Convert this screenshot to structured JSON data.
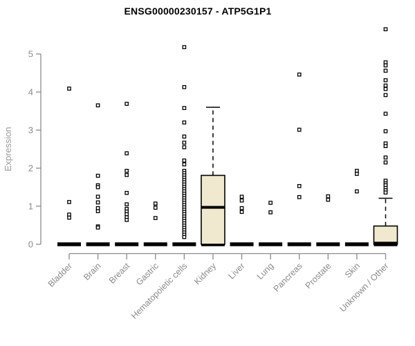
{
  "colors": {
    "box_fill": "#f0e9cf",
    "box_stroke": "#000000",
    "axis": "#8a8a8a",
    "tick_label": "#8a8a8a",
    "ylabel_color": "#9a9a9a",
    "marker_stroke": "#000000",
    "marker_fill": "#ffffff",
    "title_color": "#000000",
    "zero_bar": "#000000"
  },
  "chart_data": {
    "type": "boxplot",
    "title": "ENSG00000230157 - ATP5G1P1",
    "xlabel": "",
    "ylabel": "Expression",
    "ylim": [
      0,
      5
    ],
    "yticks": [
      0,
      1,
      2,
      3,
      4,
      5
    ],
    "grid": false,
    "legend": "none",
    "categories": [
      "Bladder",
      "Brain",
      "Breast",
      "Gastric",
      "Hematopoietic cells",
      "Kidney",
      "Liver",
      "Lung",
      "Pancreas",
      "Prostate",
      "Skin",
      "Unknown / Other"
    ],
    "series": [
      {
        "category": "Bladder",
        "box": false,
        "q1": 0,
        "median": 0,
        "q3": 0,
        "whisker_low": 0,
        "whisker_high": 0,
        "outliers": [
          4.09,
          1.11,
          0.78,
          0.7
        ]
      },
      {
        "category": "Brain",
        "box": false,
        "q1": 0,
        "median": 0,
        "q3": 0,
        "whisker_low": 0,
        "whisker_high": 0,
        "outliers": [
          3.65,
          1.8,
          1.55,
          1.5,
          1.25,
          1.1,
          0.95,
          0.87,
          0.47,
          0.44
        ]
      },
      {
        "category": "Breast",
        "box": false,
        "q1": 0,
        "median": 0,
        "q3": 0,
        "whisker_low": 0,
        "whisker_high": 0,
        "outliers": [
          3.69,
          2.39,
          1.93,
          1.82,
          1.35,
          1.05,
          0.93,
          0.86,
          0.79,
          0.71,
          0.64
        ]
      },
      {
        "category": "Gastric",
        "box": false,
        "q1": 0,
        "median": 0,
        "q3": 0,
        "whisker_low": 0,
        "whisker_high": 0,
        "outliers": [
          1.07,
          0.96,
          0.69
        ]
      },
      {
        "category": "Hematopoietic cells",
        "box": false,
        "q1": 0,
        "median": 0,
        "q3": 0,
        "whisker_low": 0,
        "whisker_high": 0,
        "outliers": [
          5.18,
          4.13,
          3.58,
          3.2,
          2.83,
          2.67,
          2.55,
          2.2,
          2.1,
          1.93,
          1.87,
          1.81,
          1.75,
          1.69,
          1.63,
          1.57,
          1.51,
          1.45,
          1.39,
          1.33,
          1.27,
          1.21,
          1.15,
          1.09,
          1.03,
          0.97,
          0.91,
          0.85,
          0.79,
          0.73,
          0.67,
          0.61,
          0.55,
          0.49,
          0.43,
          0.37,
          0.31,
          0.25,
          0.19
        ]
      },
      {
        "category": "Kidney",
        "box": true,
        "q1": 0,
        "median": 0.97,
        "q3": 1.81,
        "whisker_low": 0,
        "whisker_high": 3.6,
        "outliers": []
      },
      {
        "category": "Liver",
        "box": false,
        "q1": 0,
        "median": 0,
        "q3": 0,
        "whisker_low": 0,
        "whisker_high": 0,
        "outliers": [
          1.25,
          1.15,
          0.95,
          0.85
        ]
      },
      {
        "category": "Lung",
        "box": false,
        "q1": 0,
        "median": 0,
        "q3": 0,
        "whisker_low": 0,
        "whisker_high": 0,
        "outliers": [
          1.09,
          0.84
        ]
      },
      {
        "category": "Pancreas",
        "box": false,
        "q1": 0,
        "median": 0,
        "q3": 0,
        "whisker_low": 0,
        "whisker_high": 0,
        "outliers": [
          4.46,
          3.01,
          1.53,
          1.24
        ]
      },
      {
        "category": "Prostate",
        "box": false,
        "q1": 0,
        "median": 0,
        "q3": 0,
        "whisker_low": 0,
        "whisker_high": 0,
        "outliers": [
          1.26,
          1.17
        ]
      },
      {
        "category": "Skin",
        "box": false,
        "q1": 0,
        "median": 0,
        "q3": 0,
        "whisker_low": 0,
        "whisker_high": 0,
        "outliers": [
          1.93,
          1.85,
          1.39
        ]
      },
      {
        "category": "Unknown / Other",
        "box": true,
        "q1": 0,
        "median": 0.03,
        "q3": 0.48,
        "whisker_low": 0,
        "whisker_high": 1.21,
        "outliers": [
          5.65,
          4.78,
          4.7,
          4.56,
          4.31,
          4.17,
          4.08,
          3.92,
          3.43,
          2.97,
          2.65,
          2.58,
          2.28,
          2.15,
          1.67,
          1.6,
          1.55,
          1.48,
          1.42,
          1.36
        ]
      }
    ]
  }
}
